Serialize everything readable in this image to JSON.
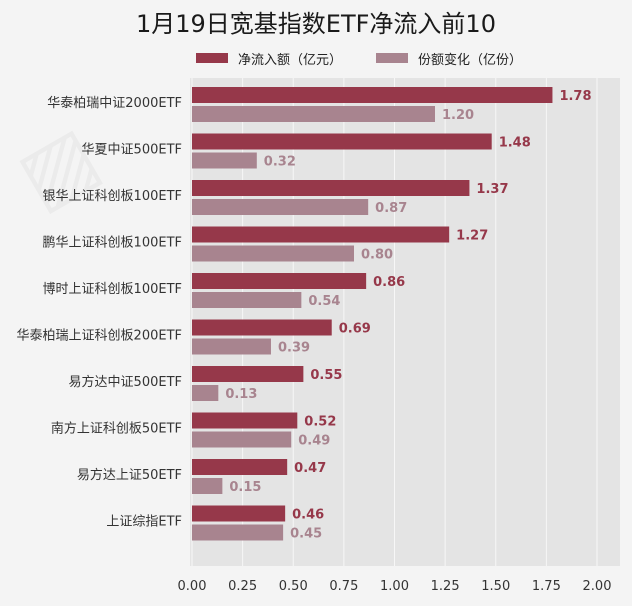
{
  "title": "1月19日宽基指数ETF净流入前10",
  "colors": {
    "net_inflow": "#96384a",
    "share_change": "#a8848f",
    "plot_bg": "#e4e4e4",
    "grid": "#f7f7f7"
  },
  "chart_data": {
    "type": "bar",
    "orientation": "horizontal",
    "title": "1月19日宽基指数ETF净流入前10",
    "categories": [
      "华泰柏瑞中证2000ETF",
      "华夏中证500ETF",
      "银华上证科创板100ETF",
      "鹏华上证科创板100ETF",
      "博时上证科创板100ETF",
      "华泰柏瑞上证科创板200ETF",
      "易方达中证500ETF",
      "南方上证科创板50ETF",
      "易方达上证50ETF",
      "上证综指ETF"
    ],
    "series": [
      {
        "name": "净流入额（亿元）",
        "values": [
          1.78,
          1.48,
          1.37,
          1.27,
          0.86,
          0.69,
          0.55,
          0.52,
          0.47,
          0.46
        ]
      },
      {
        "name": "份额变化（亿份）",
        "values": [
          1.2,
          0.32,
          0.87,
          0.8,
          0.54,
          0.39,
          0.13,
          0.49,
          0.15,
          0.45
        ]
      }
    ],
    "xlim": [
      0,
      2.0
    ],
    "xticks": [
      "0.00",
      "0.25",
      "0.50",
      "0.75",
      "1.00",
      "1.25",
      "1.50",
      "1.75",
      "2.00"
    ],
    "grid": true,
    "legend_position": "top"
  }
}
